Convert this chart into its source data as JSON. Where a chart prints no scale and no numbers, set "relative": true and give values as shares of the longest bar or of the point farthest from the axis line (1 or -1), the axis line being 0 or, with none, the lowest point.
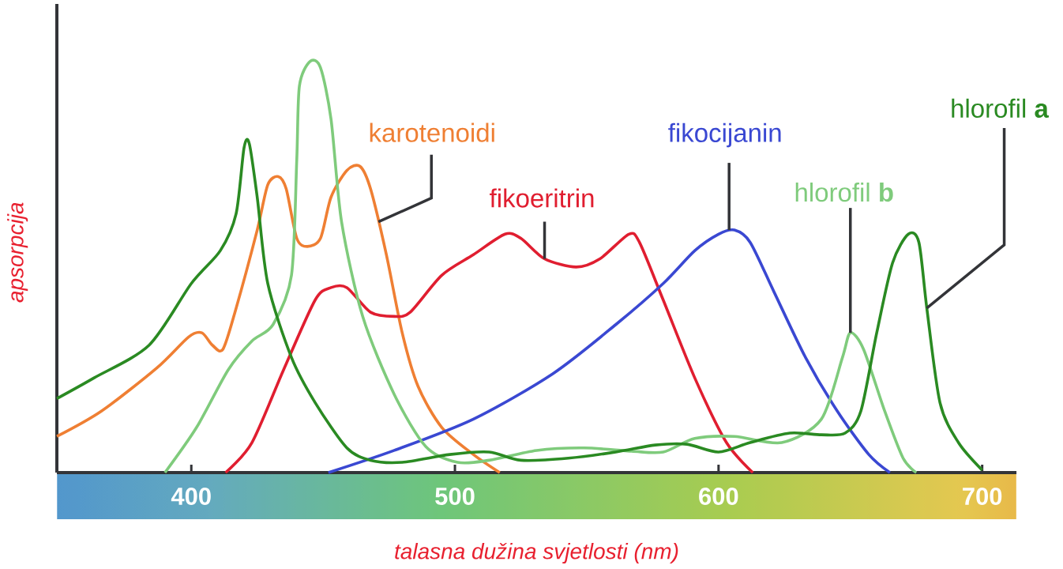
{
  "chart_data": {
    "type": "line",
    "relative": true,
    "xlabel": "talasna dužina svjetlosti (nm)",
    "ylabel": "apsorpcija",
    "xlim": [
      349,
      713
    ],
    "xticks": [
      400,
      500,
      600,
      700
    ],
    "series": [
      {
        "color": "#ef7f33",
        "x": [
          349,
          366,
          387,
          399,
          404,
          408,
          412,
          417,
          425,
          429,
          433,
          436,
          440,
          444,
          449,
          453,
          459,
          464,
          468,
          474,
          480,
          486,
          495,
          507,
          517
        ],
        "values": [
          0.088,
          0.15,
          0.255,
          0.33,
          0.34,
          0.31,
          0.3,
          0.4,
          0.59,
          0.7,
          0.72,
          0.69,
          0.57,
          0.55,
          0.57,
          0.67,
          0.735,
          0.745,
          0.69,
          0.53,
          0.34,
          0.21,
          0.11,
          0.044,
          0
        ]
      },
      {
        "color": "#e01e30",
        "x": [
          413,
          423,
          435,
          447,
          453,
          459,
          468,
          477,
          483,
          495,
          507,
          519,
          525,
          534,
          546,
          555,
          566,
          570,
          579,
          591,
          603,
          613
        ],
        "values": [
          0,
          0.073,
          0.25,
          0.42,
          0.45,
          0.45,
          0.39,
          0.38,
          0.39,
          0.48,
          0.53,
          0.58,
          0.57,
          0.52,
          0.5,
          0.52,
          0.58,
          0.56,
          0.42,
          0.23,
          0.073,
          0
        ]
      },
      {
        "color": "#3a48d2",
        "x": [
          452,
          477,
          507,
          537,
          561,
          579,
          591,
          600,
          606,
          612,
          621,
          633,
          645,
          657,
          665
        ],
        "values": [
          0,
          0.054,
          0.13,
          0.24,
          0.36,
          0.46,
          0.54,
          0.58,
          0.59,
          0.56,
          0.44,
          0.28,
          0.15,
          0.044,
          0
        ]
      },
      {
        "color": "#7fcb7c",
        "x": [
          390,
          402,
          414,
          423,
          431,
          438,
          440,
          441,
          445,
          449,
          453,
          457,
          465,
          477,
          489,
          501,
          513,
          531,
          549,
          567,
          579,
          591,
          606,
          624,
          639,
          647,
          650,
          655,
          663,
          670,
          675
        ],
        "values": [
          0,
          0.11,
          0.25,
          0.32,
          0.36,
          0.48,
          0.76,
          0.94,
          1.0,
          0.985,
          0.86,
          0.61,
          0.38,
          0.19,
          0.063,
          0.025,
          0.03,
          0.054,
          0.06,
          0.052,
          0.05,
          0.083,
          0.088,
          0.073,
          0.13,
          0.28,
          0.34,
          0.3,
          0.15,
          0.035,
          0
        ]
      },
      {
        "color": "#2a8a22",
        "x": [
          349,
          363,
          384,
          400,
          411,
          417,
          420,
          422,
          425,
          429,
          438,
          447,
          459,
          468,
          480,
          498,
          513,
          525,
          543,
          561,
          576,
          588,
          600,
          612,
          627,
          639,
          648,
          654,
          660,
          666,
          672,
          676,
          679,
          684,
          691,
          700
        ],
        "values": [
          0.18,
          0.23,
          0.31,
          0.46,
          0.54,
          0.63,
          0.79,
          0.8,
          0.67,
          0.46,
          0.28,
          0.17,
          0.06,
          0.03,
          0.025,
          0.044,
          0.05,
          0.03,
          0.035,
          0.05,
          0.067,
          0.069,
          0.05,
          0.073,
          0.096,
          0.092,
          0.096,
          0.15,
          0.34,
          0.51,
          0.58,
          0.56,
          0.4,
          0.17,
          0.073,
          0.006
        ]
      }
    ],
    "annotations": [
      {
        "text": "karotenoidi",
        "x": 471,
        "y": 0.61
      },
      {
        "text": "fikoeritrin",
        "x": 534,
        "y": 0.52
      },
      {
        "text": "fikocijanin",
        "x": 604,
        "y": 0.59
      },
      {
        "text": "hlorofil **b**",
        "x": 650,
        "y": 0.34
      },
      {
        "text": "hlorofil **a**",
        "x": 679,
        "y": 0.4
      }
    ]
  }
}
